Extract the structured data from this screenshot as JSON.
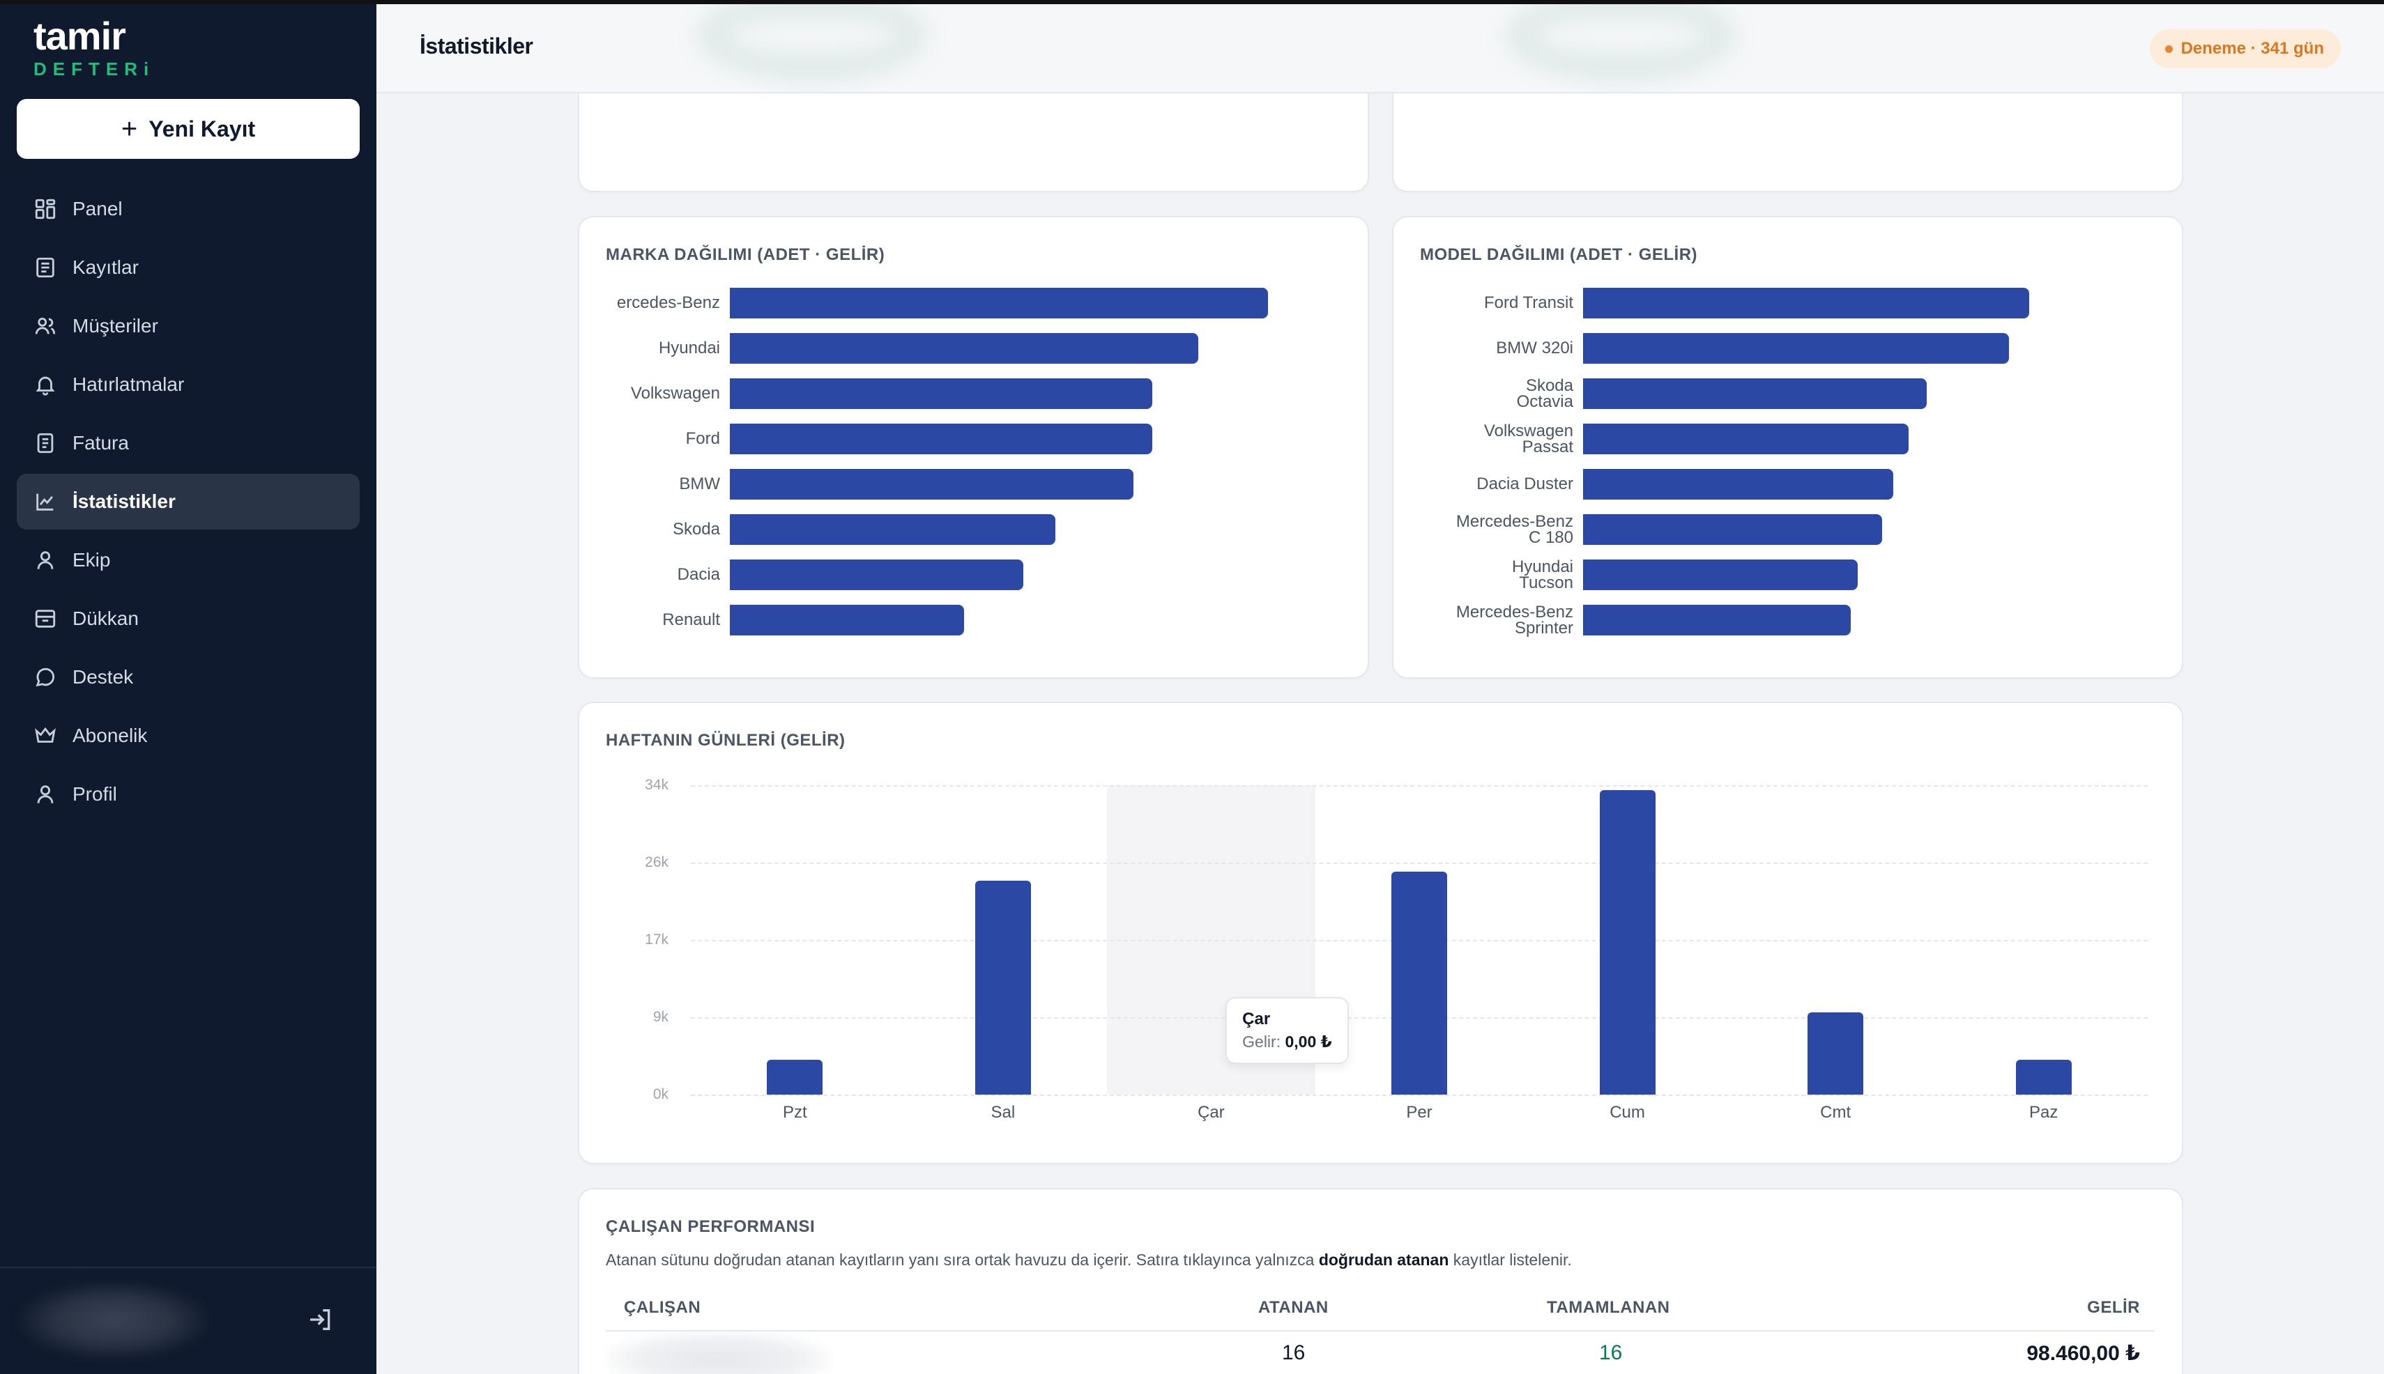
{
  "app": {
    "logo_main": "tamir",
    "logo_sub": "DEFTERi",
    "new_record_label": "Yeni Kayıt"
  },
  "sidebar": {
    "items": [
      {
        "label": "Panel",
        "icon": "dashboard-icon"
      },
      {
        "label": "Kayıtlar",
        "icon": "records-icon"
      },
      {
        "label": "Müşteriler",
        "icon": "users-icon"
      },
      {
        "label": "Hatırlatmalar",
        "icon": "bell-icon"
      },
      {
        "label": "Fatura",
        "icon": "invoice-icon"
      },
      {
        "label": "İstatistikler",
        "icon": "chart-icon",
        "active": true
      },
      {
        "label": "Ekip",
        "icon": "person-icon"
      },
      {
        "label": "Dükkan",
        "icon": "store-icon"
      },
      {
        "label": "Destek",
        "icon": "chat-icon"
      },
      {
        "label": "Abonelik",
        "icon": "crown-icon"
      },
      {
        "label": "Profil",
        "icon": "profile-icon"
      }
    ]
  },
  "header": {
    "title": "İstatistikler",
    "trial_badge": "Deneme · 341 gün"
  },
  "brand_card": {
    "title": "MARKA DAĞILIMI (ADET · GELİR)"
  },
  "model_card": {
    "title": "MODEL DAĞILIMI (ADET · GELİR)"
  },
  "weekday_card": {
    "title": "HAFTANIN GÜNLERİ (GELİR)",
    "tooltip": {
      "day": "Çar",
      "label": "Gelir:",
      "value": "0,00 ₺"
    }
  },
  "performance": {
    "title": "ÇALIŞAN PERFORMANSI",
    "desc_prefix": "Atanan sütunu doğrudan atanan kayıtların yanı sıra ortak havuzu da içerir. Satıra tıklayınca yalnızca ",
    "desc_bold": "doğrudan atanan",
    "desc_suffix": " kayıtlar listelenir.",
    "columns": {
      "employee": "ÇALIŞAN",
      "assigned": "ATANAN",
      "completed": "TAMAMLANAN",
      "revenue": "GELİR"
    },
    "rows": [
      {
        "assigned": "16",
        "completed": "16",
        "revenue": "98.460,00 ₺"
      }
    ]
  },
  "colors": {
    "bar": "#2c48a5",
    "sidebar_bg": "#0f1a2e",
    "accent_green": "#1fbf7a",
    "donut_green": "#0c7a4f",
    "donut_gray": "#98a5ba",
    "badge_text": "#d9781f"
  },
  "chart_data": [
    {
      "type": "bar",
      "orientation": "horizontal",
      "title": "MARKA DAĞILIMI (ADET · GELİR)",
      "categories": [
        "ercedes-Benz",
        "Hyundai",
        "Volkswagen",
        "Ford",
        "BMW",
        "Skoda",
        "Dacia",
        "Renault"
      ],
      "values": [
        100,
        87,
        78.5,
        78.5,
        75,
        60.5,
        54.5,
        43.5
      ],
      "xlim": [
        0,
        100
      ]
    },
    {
      "type": "bar",
      "orientation": "horizontal",
      "title": "MODEL DAĞILIMI (ADET · GELİR)",
      "categories": [
        [
          "Ford Transit"
        ],
        [
          "BMW 320i"
        ],
        [
          "Skoda",
          "Octavia"
        ],
        [
          "Volkswagen",
          "Passat"
        ],
        [
          "Dacia Duster"
        ],
        [
          "Mercedes-Benz",
          "C 180"
        ],
        [
          "Hyundai",
          "Tucson"
        ],
        [
          "Mercedes-Benz",
          "Sprinter"
        ]
      ],
      "values": [
        100,
        95.5,
        77,
        73,
        69.5,
        67,
        61.5,
        60
      ],
      "xlim": [
        0,
        100
      ]
    },
    {
      "type": "bar",
      "title": "HAFTANIN GÜNLERİ (GELİR)",
      "categories": [
        "Pzt",
        "Sal",
        "Çar",
        "Per",
        "Cum",
        "Cmt",
        "Paz"
      ],
      "values": [
        3800,
        23500,
        0,
        24500,
        33500,
        9000,
        3800
      ],
      "yticks": [
        "0k",
        "9k",
        "17k",
        "26k",
        "34k"
      ],
      "ylim": [
        0,
        34000
      ]
    }
  ]
}
